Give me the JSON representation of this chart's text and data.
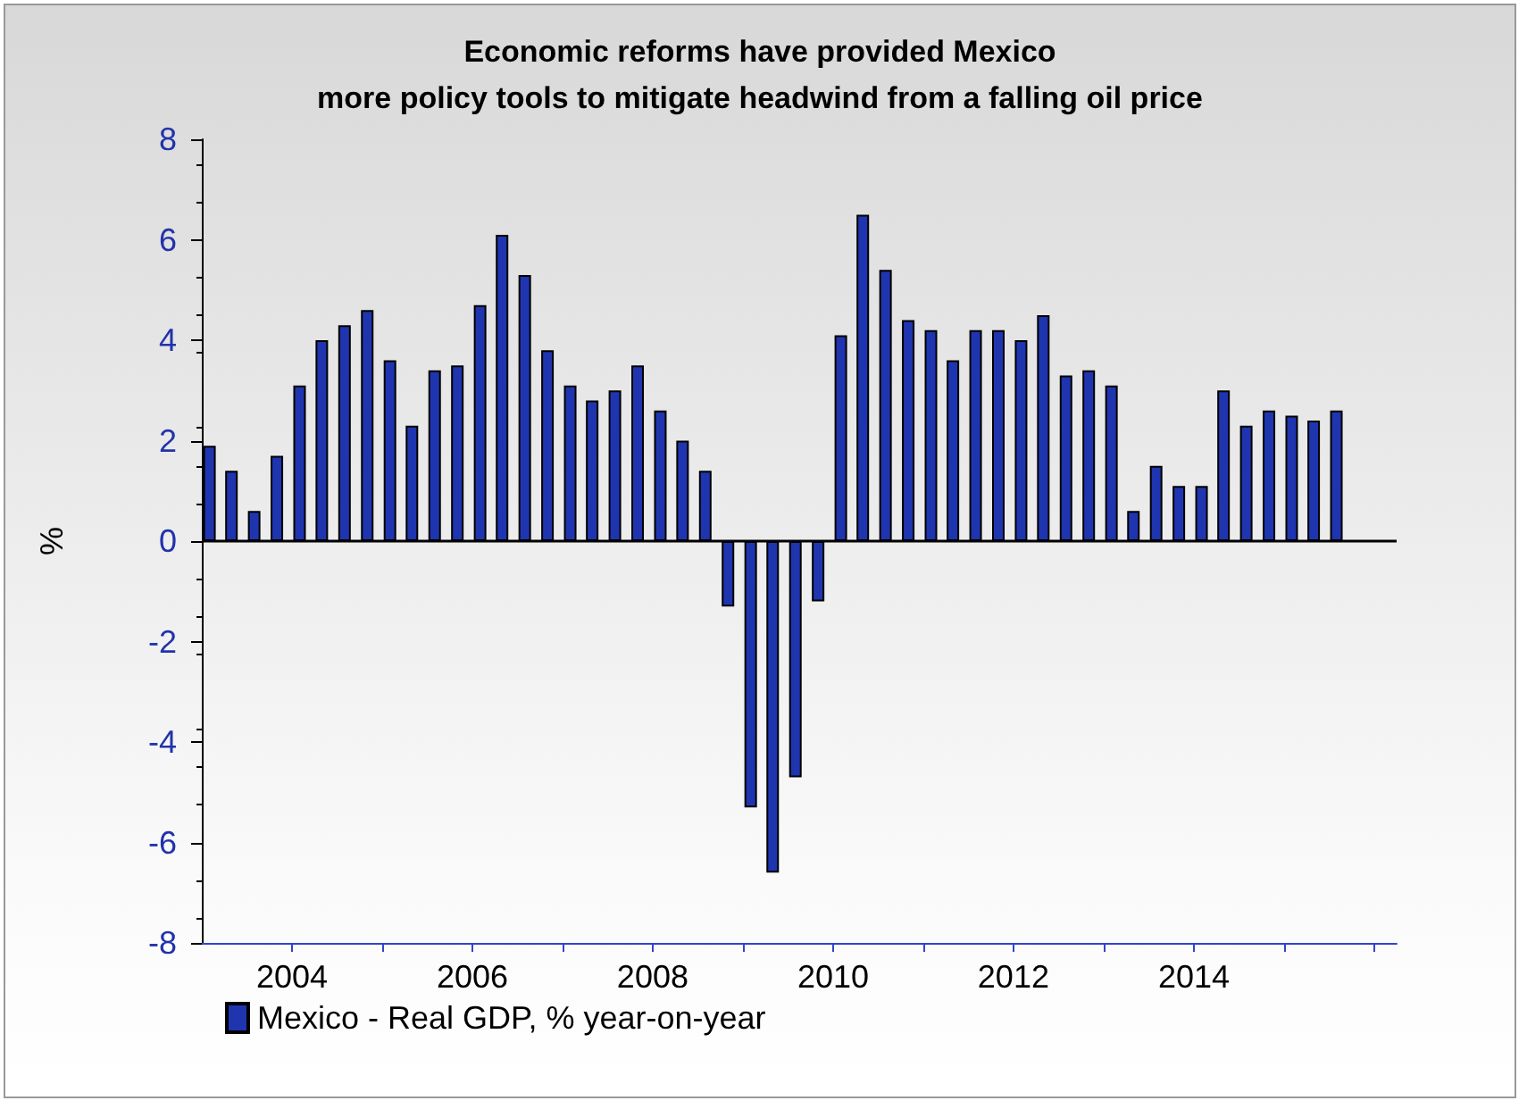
{
  "chart_data": {
    "type": "bar",
    "title": "Economic reforms have provided Mexico\nmore policy tools to mitigate headwind from a falling oil price",
    "ylabel": "%",
    "x": [
      "2003-02",
      "2003-05",
      "2003-08",
      "2003-11",
      "2004-02",
      "2004-05",
      "2004-08",
      "2004-11",
      "2005-02",
      "2005-05",
      "2005-08",
      "2005-11",
      "2006-02",
      "2006-05",
      "2006-08",
      "2006-11",
      "2007-02",
      "2007-05",
      "2007-08",
      "2007-11",
      "2008-02",
      "2008-05",
      "2008-08",
      "2008-11",
      "2009-02",
      "2009-05",
      "2009-08",
      "2009-11",
      "2010-02",
      "2010-05",
      "2010-08",
      "2010-11",
      "2011-02",
      "2011-05",
      "2011-08",
      "2011-11",
      "2012-02",
      "2012-05",
      "2012-08",
      "2012-11",
      "2013-02",
      "2013-05",
      "2013-08",
      "2013-11",
      "2014-02",
      "2014-05",
      "2014-08",
      "2014-11",
      "2015-02",
      "2015-05",
      "2015-08"
    ],
    "series": [
      {
        "name": "Mexico - Real GDP, % year-on-year",
        "color": "#1f35b0",
        "values": [
          1.9,
          1.4,
          0.6,
          1.7,
          3.1,
          4.0,
          4.3,
          4.6,
          3.6,
          2.3,
          3.4,
          3.5,
          4.7,
          6.1,
          5.3,
          3.8,
          3.1,
          2.8,
          3.0,
          3.5,
          2.6,
          2.0,
          1.4,
          -1.3,
          -5.3,
          -6.6,
          -4.7,
          -1.2,
          4.1,
          6.5,
          5.4,
          4.4,
          4.2,
          3.6,
          4.2,
          4.2,
          4.0,
          4.5,
          3.3,
          3.4,
          3.1,
          0.6,
          1.5,
          1.1,
          1.1,
          3.0,
          2.3,
          2.6,
          2.5,
          2.4,
          2.6
        ]
      }
    ],
    "xlim": [
      "2003-01",
      "2016-04"
    ],
    "xticks": [
      {
        "value": "2004",
        "label": "2004"
      },
      {
        "value": "2005",
        "label": null
      },
      {
        "value": "2006",
        "label": "2006"
      },
      {
        "value": "2007",
        "label": null
      },
      {
        "value": "2008",
        "label": "2008"
      },
      {
        "value": "2009",
        "label": null
      },
      {
        "value": "2010",
        "label": "2010"
      },
      {
        "value": "2011",
        "label": null
      },
      {
        "value": "2012",
        "label": "2012"
      },
      {
        "value": "2013",
        "label": null
      },
      {
        "value": "2014",
        "label": "2014"
      },
      {
        "value": "2015",
        "label": null
      },
      {
        "value": "2016",
        "label": null
      }
    ],
    "ylim": [
      -8,
      8
    ],
    "yticks": [
      -8,
      -6,
      -4,
      -2,
      0,
      2,
      4,
      6,
      8
    ],
    "ref_lines": [
      {
        "axis": "y",
        "value": 0,
        "color": "#000000"
      }
    ],
    "grid": false,
    "legend": "bottom left"
  }
}
